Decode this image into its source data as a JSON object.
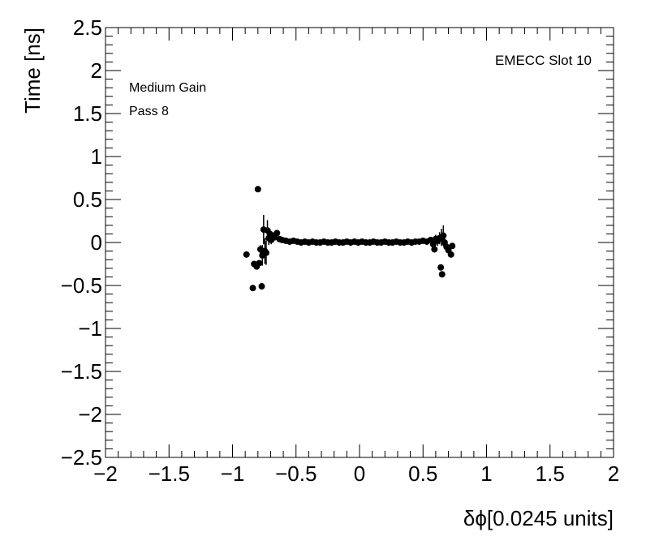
{
  "chart_data": {
    "type": "scatter",
    "xlabel": "δϕ[0.0245 units]",
    "ylabel": "Time [ns]",
    "xlim": [
      -2,
      2
    ],
    "ylim": [
      -2.5,
      2.5
    ],
    "x_ticks": [
      -2,
      -1.5,
      -1,
      -0.5,
      0,
      0.5,
      1,
      1.5,
      2
    ],
    "x_tick_labels": [
      "−2",
      "−1.5",
      "−1",
      "−0.5",
      "0",
      "0.5",
      "1",
      "1.5",
      "2"
    ],
    "y_ticks": [
      -2.5,
      -2,
      -1.5,
      -1,
      -0.5,
      0,
      0.5,
      1,
      1.5,
      2,
      2.5
    ],
    "y_tick_labels": [
      "−2.5",
      "−2",
      "−1.5",
      "−1",
      "−0.5",
      "0",
      "0.5",
      "1",
      "1.5",
      "2",
      "2.5"
    ],
    "grid": false,
    "annotations": [
      "Medium Gain",
      "Pass 8",
      "EMECC Slot 10"
    ],
    "series": [
      {
        "marker": "circle",
        "color": "#000000",
        "points": [
          {
            "x": -0.89,
            "y": -0.14,
            "err": 0.02
          },
          {
            "x": -0.84,
            "y": -0.53,
            "err": 0.02
          },
          {
            "x": -0.83,
            "y": -0.25,
            "err": 0.02
          },
          {
            "x": -0.81,
            "y": -0.28,
            "err": 0.02
          },
          {
            "x": -0.8,
            "y": 0.62,
            "err": 0.02
          },
          {
            "x": -0.79,
            "y": -0.24,
            "err": 0.03
          },
          {
            "x": -0.78,
            "y": -0.08,
            "err": 0.05
          },
          {
            "x": -0.77,
            "y": -0.51,
            "err": 0.02
          },
          {
            "x": -0.765,
            "y": -0.15,
            "err": 0.12
          },
          {
            "x": -0.755,
            "y": 0.15,
            "err": 0.17
          },
          {
            "x": -0.745,
            "y": -0.1,
            "err": 0.15
          },
          {
            "x": -0.735,
            "y": -0.12,
            "err": 0.14
          },
          {
            "x": -0.725,
            "y": 0.14,
            "err": 0.12
          },
          {
            "x": -0.715,
            "y": 0.05,
            "err": 0.08
          },
          {
            "x": -0.705,
            "y": 0.1,
            "err": 0.06
          },
          {
            "x": -0.695,
            "y": 0.03,
            "err": 0.05
          },
          {
            "x": -0.685,
            "y": 0.08,
            "err": 0.04
          },
          {
            "x": -0.67,
            "y": 0.06,
            "err": 0.03
          },
          {
            "x": -0.65,
            "y": 0.11,
            "err": 0.03
          },
          {
            "x": -0.63,
            "y": 0.04,
            "err": 0.02
          },
          {
            "x": -0.61,
            "y": 0.03,
            "err": 0.02
          },
          {
            "x": -0.58,
            "y": 0.02,
            "err": 0.02
          },
          {
            "x": -0.55,
            "y": 0.01,
            "err": 0.01
          },
          {
            "x": -0.52,
            "y": 0.02,
            "err": 0.01
          },
          {
            "x": -0.49,
            "y": 0.01,
            "err": 0.01
          },
          {
            "x": -0.46,
            "y": 0.0,
            "err": 0.01
          },
          {
            "x": -0.43,
            "y": 0.01,
            "err": 0.01
          },
          {
            "x": -0.4,
            "y": 0.0,
            "err": 0.01
          },
          {
            "x": -0.37,
            "y": 0.01,
            "err": 0.01
          },
          {
            "x": -0.34,
            "y": 0.0,
            "err": 0.01
          },
          {
            "x": -0.31,
            "y": 0.0,
            "err": 0.01
          },
          {
            "x": -0.28,
            "y": 0.01,
            "err": 0.01
          },
          {
            "x": -0.25,
            "y": 0.0,
            "err": 0.01
          },
          {
            "x": -0.22,
            "y": 0.0,
            "err": 0.01
          },
          {
            "x": -0.19,
            "y": 0.01,
            "err": 0.01
          },
          {
            "x": -0.16,
            "y": 0.0,
            "err": 0.01
          },
          {
            "x": -0.13,
            "y": 0.0,
            "err": 0.01
          },
          {
            "x": -0.1,
            "y": 0.01,
            "err": 0.01
          },
          {
            "x": -0.07,
            "y": 0.0,
            "err": 0.01
          },
          {
            "x": -0.04,
            "y": 0.01,
            "err": 0.01
          },
          {
            "x": -0.01,
            "y": 0.0,
            "err": 0.01
          },
          {
            "x": 0.02,
            "y": 0.01,
            "err": 0.01
          },
          {
            "x": 0.05,
            "y": 0.0,
            "err": 0.01
          },
          {
            "x": 0.08,
            "y": 0.0,
            "err": 0.01
          },
          {
            "x": 0.11,
            "y": 0.01,
            "err": 0.01
          },
          {
            "x": 0.14,
            "y": 0.0,
            "err": 0.01
          },
          {
            "x": 0.17,
            "y": 0.0,
            "err": 0.01
          },
          {
            "x": 0.2,
            "y": 0.01,
            "err": 0.01
          },
          {
            "x": 0.23,
            "y": 0.0,
            "err": 0.01
          },
          {
            "x": 0.26,
            "y": 0.0,
            "err": 0.01
          },
          {
            "x": 0.29,
            "y": 0.01,
            "err": 0.01
          },
          {
            "x": 0.32,
            "y": 0.0,
            "err": 0.01
          },
          {
            "x": 0.35,
            "y": 0.0,
            "err": 0.01
          },
          {
            "x": 0.38,
            "y": 0.01,
            "err": 0.01
          },
          {
            "x": 0.41,
            "y": 0.0,
            "err": 0.01
          },
          {
            "x": 0.44,
            "y": 0.01,
            "err": 0.01
          },
          {
            "x": 0.47,
            "y": 0.01,
            "err": 0.02
          },
          {
            "x": 0.5,
            "y": 0.02,
            "err": 0.02
          },
          {
            "x": 0.53,
            "y": 0.01,
            "err": 0.02
          },
          {
            "x": 0.56,
            "y": 0.03,
            "err": 0.03
          },
          {
            "x": 0.58,
            "y": -0.02,
            "err": 0.04
          },
          {
            "x": 0.59,
            "y": -0.08,
            "err": 0.03
          },
          {
            "x": 0.6,
            "y": 0.04,
            "err": 0.05
          },
          {
            "x": 0.615,
            "y": 0.02,
            "err": 0.06
          },
          {
            "x": 0.63,
            "y": 0.05,
            "err": 0.07
          },
          {
            "x": 0.64,
            "y": -0.29,
            "err": 0.03
          },
          {
            "x": 0.645,
            "y": 0.06,
            "err": 0.1
          },
          {
            "x": 0.65,
            "y": -0.37,
            "err": 0.03
          },
          {
            "x": 0.66,
            "y": 0.08,
            "err": 0.12
          },
          {
            "x": 0.67,
            "y": 0.0,
            "err": 0.06
          },
          {
            "x": 0.685,
            "y": -0.05,
            "err": 0.05
          },
          {
            "x": 0.7,
            "y": -0.09,
            "err": 0.03
          },
          {
            "x": 0.72,
            "y": -0.14,
            "err": 0.02
          },
          {
            "x": 0.73,
            "y": -0.04,
            "err": 0.02
          }
        ]
      }
    ]
  }
}
